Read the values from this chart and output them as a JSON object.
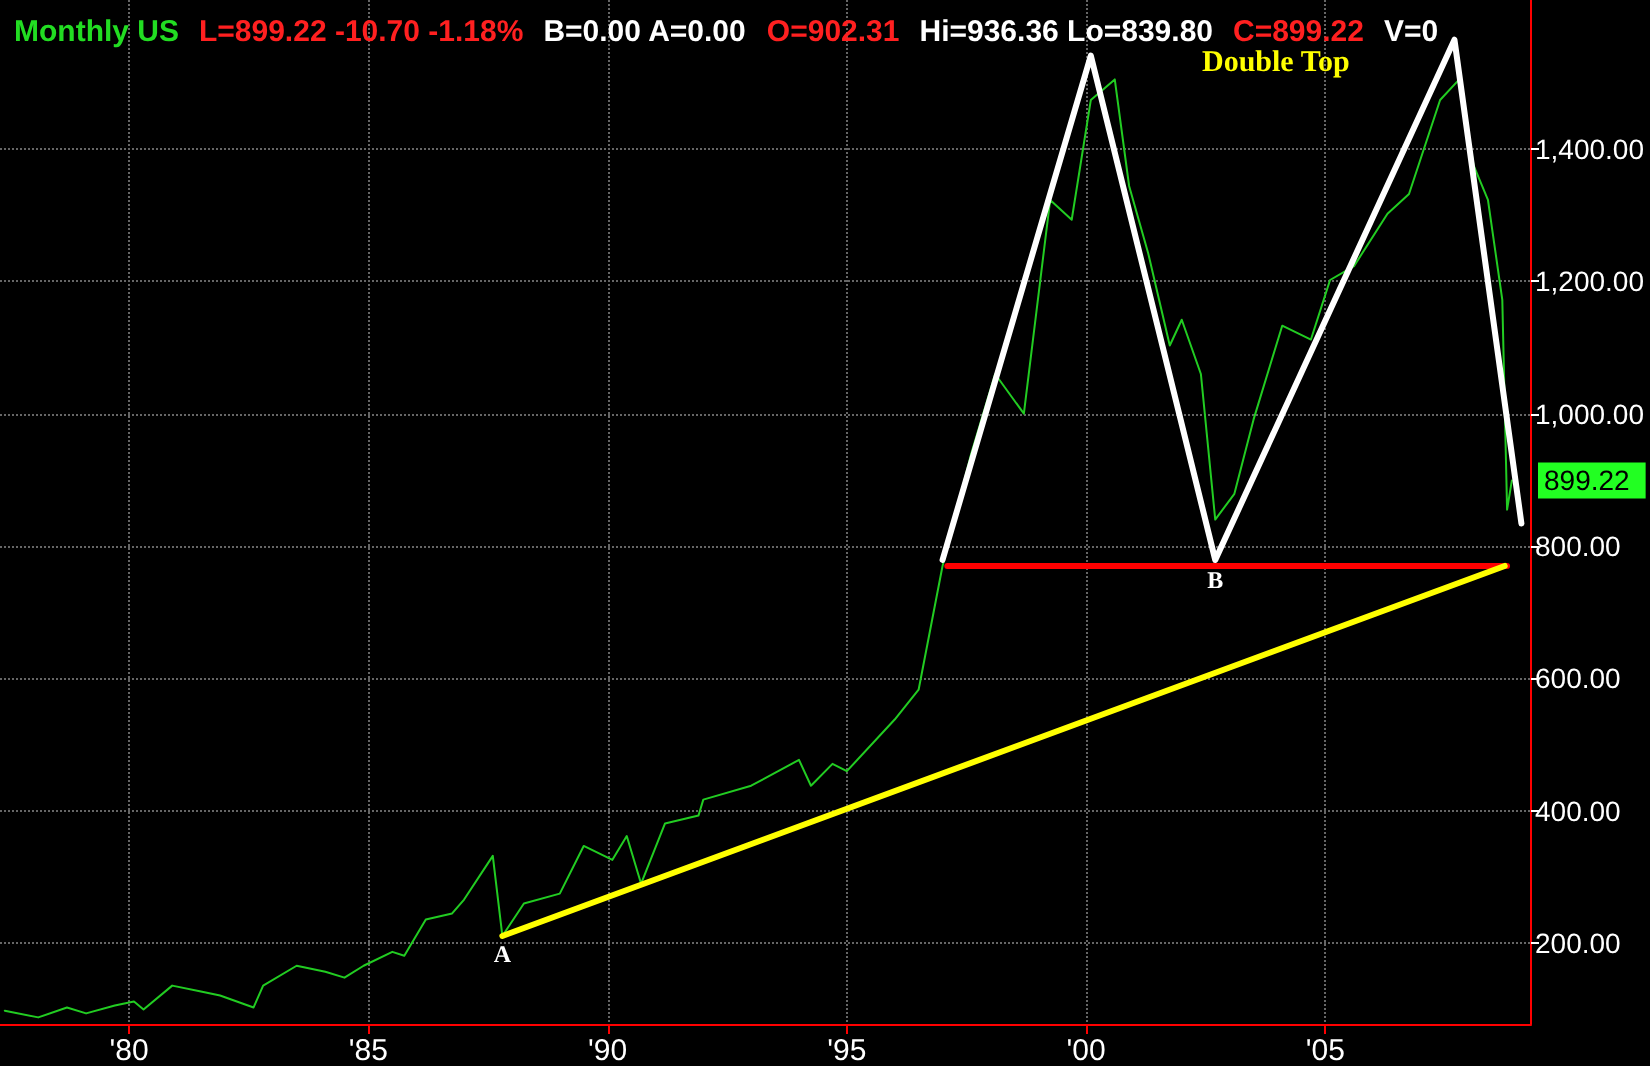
{
  "chart_data": {
    "type": "line",
    "title": "Monthly US",
    "subtitle": "Double Top",
    "annotations": [
      "L=899.22 -10.70 -1.18%",
      "B=0.00 A=0.00",
      "O=902.31",
      "Hi=936.36 Lo=839.80",
      "C=899.22",
      "V=0",
      {
        "text": "A",
        "x": 1987.8,
        "y": 211
      },
      {
        "text": "B",
        "x": 2002.7,
        "y": 776
      },
      {
        "text": "899.22",
        "x": 2008.9,
        "y": 899.22
      }
    ],
    "series": [
      {
        "color": "#22cc22",
        "x": [
          1977.4,
          1978.1,
          1978.7,
          1979.1,
          1979.7,
          1980.1,
          1980.3,
          1980.9,
          1981.5,
          1981.9,
          1982.6,
          1982.8,
          1983.5,
          1984.1,
          1984.5,
          1984.9,
          1985.5,
          1985.75,
          1986.2,
          1986.75,
          1987.0,
          1987.6,
          1987.8,
          1988.25,
          1989.0,
          1989.5,
          1990.1,
          1990.4,
          1990.7,
          1991.2,
          1991.9,
          1992.0,
          1993.0,
          1994.0,
          1994.25,
          1994.7,
          1995.0,
          1996.0,
          1996.5,
          1997.0,
          1997.6,
          1998.1,
          1998.7,
          1999.25,
          1999.7,
          2000.1,
          2000.6,
          2000.9,
          2001.3,
          2001.75,
          2002.0,
          2002.4,
          2002.7,
          2003.1,
          2003.5,
          2004.1,
          2004.7,
          2005.1,
          2005.6,
          2006.3,
          2006.75,
          2007.4,
          2007.8,
          2008.1,
          2008.4,
          2008.7,
          2008.8,
          2008.9
        ],
        "values": [
          98,
          88,
          103,
          94,
          106,
          112,
          100,
          136,
          127,
          121,
          103,
          136,
          166,
          157,
          148,
          166,
          187,
          181,
          236,
          245,
          266,
          332,
          211,
          260,
          275,
          347,
          326,
          362,
          290,
          381,
          393,
          417,
          438,
          477,
          438,
          471,
          460,
          538,
          583,
          770,
          940,
          1060,
          1000,
          1323,
          1293,
          1474,
          1505,
          1344,
          1242,
          1103,
          1142,
          1060,
          840,
          879,
          991,
          1133,
          1112,
          1202,
          1223,
          1302,
          1332,
          1474,
          1505,
          1375,
          1323,
          1172,
          855,
          899.22
        ]
      },
      {
        "color": "#ffffff",
        "x": [
          1997.0,
          2000.1,
          2002.7,
          2007.7,
          2009.1
        ],
        "values": [
          779,
          1541,
          779,
          1565,
          834
        ]
      },
      {
        "color": "#ff0000",
        "x": [
          1997.1,
          2008.8
        ],
        "values": [
          770,
          770
        ]
      },
      {
        "color": "#ffff00",
        "x": [
          1987.8,
          2008.75
        ],
        "values": [
          211,
          770
        ]
      }
    ],
    "xlim": [
      1977.3,
      2009.3
    ],
    "xticks": [
      {
        "value": 1980,
        "label": "'80"
      },
      {
        "value": 1985,
        "label": "'85"
      },
      {
        "value": 1990,
        "label": "'90"
      },
      {
        "value": 1995,
        "label": "'95"
      },
      {
        "value": 2000,
        "label": "'00"
      },
      {
        "value": 2005,
        "label": "'05"
      }
    ],
    "ylim": [
      78,
      1625
    ],
    "yticks": [
      {
        "value": 200,
        "label": "200.00"
      },
      {
        "value": 400,
        "label": "400.00"
      },
      {
        "value": 600,
        "label": "600.00"
      },
      {
        "value": 800,
        "label": "800.00"
      },
      {
        "value": 1000,
        "label": "1,000.00"
      },
      {
        "value": 1200,
        "label": "1,200.00"
      },
      {
        "value": 1400,
        "label": "1,400.00"
      }
    ],
    "grid": true,
    "marker": "none",
    "line_style": "solid"
  }
}
